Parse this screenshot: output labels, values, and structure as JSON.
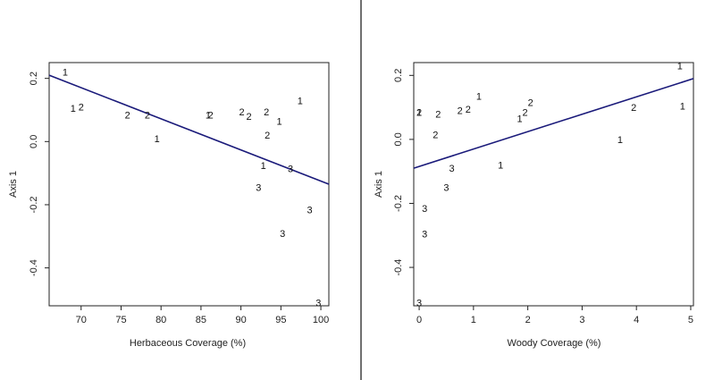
{
  "chart_data": [
    {
      "type": "scatter",
      "title": "",
      "xlabel": "Herbaceous Coverage (%)",
      "ylabel": "Axis 1",
      "xlim": [
        66,
        101
      ],
      "ylim": [
        -0.52,
        0.25
      ],
      "xticks": [
        "70",
        "75",
        "80",
        "85",
        "90",
        "95",
        "100"
      ],
      "yticks": [
        "0.2",
        "0.0",
        "-0.2",
        "-0.4"
      ],
      "point_marker": "numeric label",
      "points": [
        {
          "x": 68.0,
          "y": 0.22,
          "label": "1"
        },
        {
          "x": 69.0,
          "y": 0.105,
          "label": "1"
        },
        {
          "x": 70.0,
          "y": 0.11,
          "label": "2"
        },
        {
          "x": 75.8,
          "y": 0.085,
          "label": "2"
        },
        {
          "x": 78.3,
          "y": 0.085,
          "label": "2"
        },
        {
          "x": 79.5,
          "y": 0.01,
          "label": "1"
        },
        {
          "x": 85.9,
          "y": 0.085,
          "label": "1"
        },
        {
          "x": 86.2,
          "y": 0.085,
          "label": "2"
        },
        {
          "x": 90.1,
          "y": 0.095,
          "label": "2"
        },
        {
          "x": 91.0,
          "y": 0.08,
          "label": "2"
        },
        {
          "x": 93.2,
          "y": 0.095,
          "label": "2"
        },
        {
          "x": 94.8,
          "y": 0.065,
          "label": "1"
        },
        {
          "x": 93.3,
          "y": 0.02,
          "label": "2"
        },
        {
          "x": 97.4,
          "y": 0.13,
          "label": "1"
        },
        {
          "x": 92.8,
          "y": -0.075,
          "label": "1"
        },
        {
          "x": 96.2,
          "y": -0.085,
          "label": "3"
        },
        {
          "x": 92.2,
          "y": -0.145,
          "label": "3"
        },
        {
          "x": 98.6,
          "y": -0.215,
          "label": "3"
        },
        {
          "x": 95.2,
          "y": -0.29,
          "label": "3"
        },
        {
          "x": 99.7,
          "y": -0.51,
          "label": "3"
        }
      ],
      "regression_line": {
        "x": [
          66,
          101
        ],
        "y": [
          0.21,
          -0.135
        ]
      },
      "line_color": "#1a1a7a"
    },
    {
      "type": "scatter",
      "title": "",
      "xlabel": "Woody Coverage (%)",
      "ylabel": "Axis 1",
      "xlim": [
        -0.1,
        5.05
      ],
      "ylim": [
        -0.52,
        0.24
      ],
      "xticks": [
        "0",
        "1",
        "2",
        "3",
        "4",
        "5"
      ],
      "yticks": [
        "0.2",
        "0.0",
        "-0.2",
        "-0.4"
      ],
      "point_marker": "numeric label",
      "points": [
        {
          "x": 0.0,
          "y": 0.085,
          "label": "1"
        },
        {
          "x": 0.0,
          "y": 0.085,
          "label": "2"
        },
        {
          "x": 0.35,
          "y": 0.08,
          "label": "2"
        },
        {
          "x": 0.3,
          "y": 0.015,
          "label": "2"
        },
        {
          "x": 0.6,
          "y": -0.09,
          "label": "3"
        },
        {
          "x": 0.5,
          "y": -0.15,
          "label": "3"
        },
        {
          "x": 0.1,
          "y": -0.215,
          "label": "3"
        },
        {
          "x": 0.1,
          "y": -0.295,
          "label": "3"
        },
        {
          "x": 0.0,
          "y": -0.51,
          "label": "3"
        },
        {
          "x": 0.75,
          "y": 0.09,
          "label": "2"
        },
        {
          "x": 0.9,
          "y": 0.095,
          "label": "2"
        },
        {
          "x": 1.1,
          "y": 0.135,
          "label": "1"
        },
        {
          "x": 1.5,
          "y": -0.08,
          "label": "1"
        },
        {
          "x": 1.85,
          "y": 0.065,
          "label": "1"
        },
        {
          "x": 1.95,
          "y": 0.085,
          "label": "2"
        },
        {
          "x": 2.05,
          "y": 0.115,
          "label": "2"
        },
        {
          "x": 3.7,
          "y": 0.0,
          "label": "1"
        },
        {
          "x": 3.95,
          "y": 0.1,
          "label": "2"
        },
        {
          "x": 4.8,
          "y": 0.23,
          "label": "1"
        },
        {
          "x": 4.85,
          "y": 0.105,
          "label": "1"
        }
      ],
      "regression_line": {
        "x": [
          -0.1,
          5.05
        ],
        "y": [
          -0.09,
          0.19
        ]
      },
      "line_color": "#1a1a7a"
    }
  ]
}
